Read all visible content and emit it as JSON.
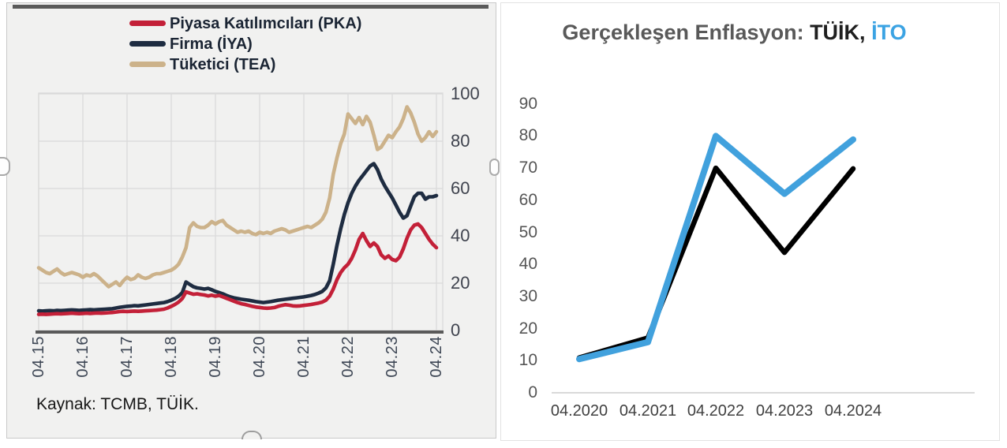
{
  "left_panel": {
    "source_note": "Kaynak: TCMB, TÜİK."
  },
  "right_panel": {
    "title_parts": [
      {
        "text": "Gerçekleşen Enflasyon: ",
        "color": "#595959"
      },
      {
        "text": "TÜİK,",
        "color": "#1f1f1f"
      },
      {
        "text": " İTO",
        "color": "#3ba3e3"
      }
    ]
  },
  "chart_data": [
    {
      "type": "line",
      "title": "",
      "x_unit": "monthly, 04.2015 to 04.2024",
      "x_tick_labels": [
        "04.15",
        "04.16",
        "04.17",
        "04.18",
        "04.19",
        "04.20",
        "04.21",
        "04.22",
        "04.23",
        "04.24"
      ],
      "y_ticks": [
        0,
        20,
        40,
        60,
        80,
        100
      ],
      "ylim": [
        0,
        100
      ],
      "grid": true,
      "legend_position": "top",
      "source": "Kaynak: TCMB, TÜİK.",
      "series": [
        {
          "name": "Piyasa Katılımcıları (PKA)",
          "color": "#c32038",
          "values": [
            6.8,
            6.9,
            6.8,
            6.9,
            7.0,
            7.1,
            7.0,
            7.1,
            7.2,
            7.3,
            7.2,
            7.1,
            7.2,
            7.3,
            7.2,
            7.3,
            7.4,
            7.3,
            7.4,
            7.5,
            7.6,
            7.8,
            8.0,
            8.1,
            8.0,
            8.1,
            8.2,
            8.1,
            8.2,
            8.3,
            8.4,
            8.5,
            8.6,
            8.8,
            9.0,
            9.5,
            10.2,
            11.0,
            12.0,
            13.5,
            16.3,
            15.8,
            15.3,
            15.5,
            15.2,
            15.0,
            14.6,
            14.9,
            14.5,
            14.8,
            14.2,
            13.6,
            13.0,
            12.4,
            11.8,
            11.3,
            11.0,
            10.6,
            10.2,
            9.9,
            9.7,
            9.5,
            9.4,
            9.5,
            9.7,
            10.2,
            10.6,
            10.9,
            10.7,
            10.4,
            10.3,
            10.4,
            10.6,
            10.8,
            11.0,
            11.3,
            11.6,
            12.0,
            12.8,
            14.5,
            17.5,
            21.5,
            24.5,
            26.5,
            28.0,
            30.5,
            34.0,
            38.5,
            41.0,
            38.0,
            35.5,
            37.0,
            35.5,
            32.0,
            30.5,
            31.5,
            30.0,
            29.5,
            31.0,
            34.5,
            39.0,
            42.5,
            44.5,
            45.0,
            43.5,
            41.0,
            38.5,
            36.5,
            35.0
          ]
        },
        {
          "name": "Firma (İYA)",
          "color": "#1e2c41",
          "values": [
            8.3,
            8.2,
            8.3,
            8.4,
            8.3,
            8.5,
            8.4,
            8.5,
            8.6,
            8.7,
            8.6,
            8.5,
            8.6,
            8.7,
            8.8,
            8.7,
            8.8,
            8.9,
            9.0,
            9.1,
            9.2,
            9.5,
            9.8,
            10.0,
            10.2,
            10.3,
            10.5,
            10.4,
            10.6,
            10.8,
            11.0,
            11.2,
            11.4,
            11.6,
            11.8,
            12.2,
            12.8,
            13.5,
            14.5,
            16.0,
            20.5,
            19.5,
            18.5,
            18.0,
            17.8,
            17.5,
            17.8,
            17.2,
            16.5,
            16.0,
            15.5,
            14.8,
            14.2,
            13.8,
            13.5,
            13.2,
            13.0,
            12.8,
            12.5,
            12.2,
            12.0,
            11.8,
            12.0,
            12.2,
            12.5,
            12.8,
            13.0,
            13.2,
            13.4,
            13.6,
            13.8,
            14.0,
            14.2,
            14.5,
            14.8,
            15.2,
            15.8,
            16.5,
            18.0,
            21.0,
            28.0,
            36.0,
            43.0,
            49.0,
            54.0,
            58.0,
            61.0,
            63.5,
            65.5,
            67.5,
            69.5,
            70.5,
            68.0,
            64.0,
            61.0,
            58.5,
            56.0,
            53.0,
            50.0,
            47.5,
            48.5,
            52.5,
            56.5,
            58.0,
            58.0,
            55.5,
            56.5,
            56.5,
            57.0
          ]
        },
        {
          "name": "Tüketici (TEA)",
          "color": "#ccb28a",
          "values": [
            26.5,
            25.5,
            24.5,
            24.0,
            25.0,
            26.0,
            24.5,
            23.5,
            24.0,
            24.5,
            24.0,
            23.5,
            22.5,
            23.5,
            23.0,
            24.0,
            23.0,
            21.5,
            20.0,
            18.5,
            19.5,
            20.5,
            19.0,
            21.0,
            22.5,
            21.5,
            22.0,
            23.5,
            22.5,
            22.0,
            22.5,
            23.5,
            24.0,
            24.0,
            24.5,
            25.0,
            25.5,
            26.5,
            28.0,
            31.0,
            35.0,
            43.5,
            45.5,
            44.0,
            43.5,
            43.5,
            44.5,
            46.0,
            45.0,
            46.0,
            46.5,
            44.5,
            43.5,
            42.5,
            41.5,
            42.0,
            41.5,
            42.0,
            41.0,
            40.5,
            41.5,
            41.0,
            41.5,
            41.0,
            42.0,
            42.5,
            43.0,
            42.5,
            41.5,
            42.0,
            42.5,
            43.0,
            43.5,
            44.0,
            43.5,
            44.5,
            45.5,
            47.0,
            50.0,
            56.0,
            66.0,
            73.0,
            79.0,
            83.0,
            91.5,
            89.5,
            87.5,
            90.0,
            87.0,
            90.5,
            88.0,
            82.5,
            76.5,
            77.5,
            80.0,
            82.5,
            81.5,
            84.0,
            86.0,
            89.5,
            94.5,
            92.0,
            88.0,
            83.0,
            80.0,
            81.5,
            84.0,
            82.0,
            84.0
          ]
        }
      ]
    },
    {
      "type": "line",
      "title": "Gerçekleşen Enflasyon: TÜİK, İTO",
      "categories": [
        "04.2020",
        "04.2021",
        "04.2022",
        "04.2023",
        "04.2024"
      ],
      "y_ticks": [
        0,
        10,
        20,
        30,
        40,
        50,
        60,
        70,
        80,
        90
      ],
      "ylim": [
        0,
        90
      ],
      "grid": false,
      "legend_position": "none",
      "series": [
        {
          "name": "TÜİK",
          "color": "#000000",
          "values": [
            10.9,
            17.1,
            70.0,
            43.7,
            69.8
          ]
        },
        {
          "name": "İTO",
          "color": "#41a1dd",
          "values": [
            10.5,
            15.8,
            80.0,
            62.0,
            78.9
          ]
        }
      ]
    }
  ]
}
